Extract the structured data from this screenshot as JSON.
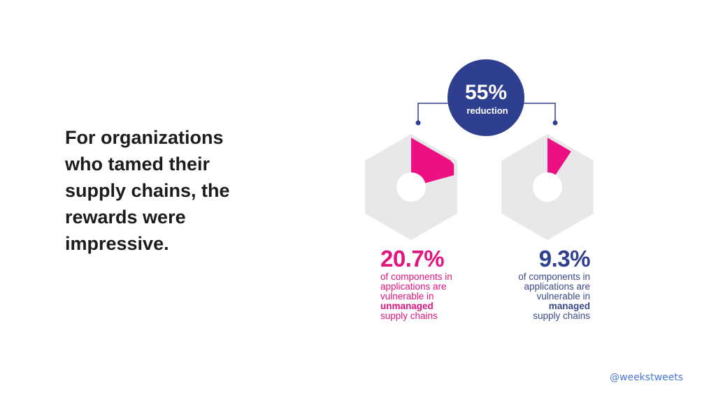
{
  "headline": {
    "lines": [
      "For organizations",
      "who tamed their",
      "supply chains, the",
      "rewards were",
      "impressive."
    ]
  },
  "reduction": {
    "value": "55%",
    "label": "reduction"
  },
  "unmanaged": {
    "value": "20.7%",
    "fraction": 0.207,
    "lines": [
      "of components in",
      "applications are",
      "vulnerable in"
    ],
    "emphasis": "unmanaged",
    "last_line": "supply chains"
  },
  "managed": {
    "value": "9.3%",
    "fraction": 0.093,
    "lines": [
      "of components in",
      "applications are",
      "vulnerable in"
    ],
    "emphasis": "managed",
    "last_line": "supply chains"
  },
  "colors": {
    "magenta": "#ec1082",
    "navy": "#2f3f8f",
    "hex_gray": "#e8e8ea",
    "connector": "#2f3f8f"
  },
  "footer": {
    "handle": "@weekstweets"
  }
}
